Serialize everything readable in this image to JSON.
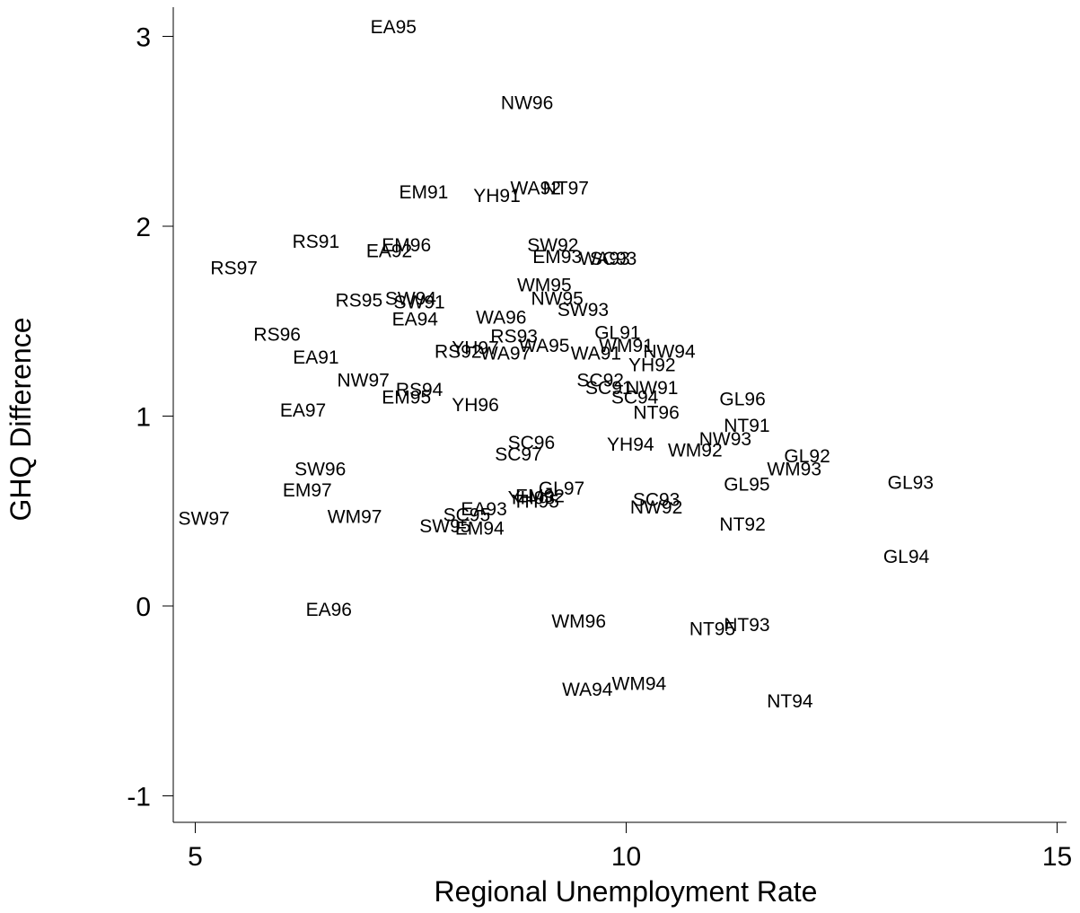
{
  "chart_data": {
    "type": "scatter",
    "title": "",
    "xlabel": "Regional Unemployment Rate",
    "ylabel": "GHQ Difference",
    "xlim": [
      4.75,
      15.05
    ],
    "ylim": [
      -1.2,
      3.2
    ],
    "xticks": [
      5,
      10,
      15
    ],
    "yticks": [
      -1,
      0,
      1,
      2,
      3
    ],
    "x_tick_labels": [
      "5",
      "10",
      "15"
    ],
    "y_tick_labels": [
      "-1",
      "0",
      "1",
      "2",
      "3"
    ],
    "grid": false,
    "marker": "label-only",
    "points": [
      {
        "label": "EA95",
        "x": 7.3,
        "y": 3.05
      },
      {
        "label": "NW96",
        "x": 8.85,
        "y": 2.65
      },
      {
        "label": "EM91",
        "x": 7.65,
        "y": 2.18
      },
      {
        "label": "YH91",
        "x": 8.5,
        "y": 2.16
      },
      {
        "label": "WA92",
        "x": 8.95,
        "y": 2.2
      },
      {
        "label": "NT97",
        "x": 9.3,
        "y": 2.2
      },
      {
        "label": "RS91",
        "x": 6.4,
        "y": 1.92
      },
      {
        "label": "EA92",
        "x": 7.25,
        "y": 1.87
      },
      {
        "label": "EM96",
        "x": 7.45,
        "y": 1.9
      },
      {
        "label": "RS97",
        "x": 5.45,
        "y": 1.78
      },
      {
        "label": "SW92",
        "x": 9.15,
        "y": 1.9
      },
      {
        "label": "EM93",
        "x": 9.2,
        "y": 1.84
      },
      {
        "label": "WA93",
        "x": 9.75,
        "y": 1.83
      },
      {
        "label": "SC93",
        "x": 9.85,
        "y": 1.83
      },
      {
        "label": "RS95",
        "x": 6.9,
        "y": 1.61
      },
      {
        "label": "SW94",
        "x": 7.5,
        "y": 1.62
      },
      {
        "label": "SW91",
        "x": 7.6,
        "y": 1.6
      },
      {
        "label": "WM95",
        "x": 9.05,
        "y": 1.69
      },
      {
        "label": "NW95",
        "x": 9.2,
        "y": 1.62
      },
      {
        "label": "SW93",
        "x": 9.5,
        "y": 1.56
      },
      {
        "label": "EA94",
        "x": 7.55,
        "y": 1.51
      },
      {
        "label": "WA96",
        "x": 8.55,
        "y": 1.52
      },
      {
        "label": "RS96",
        "x": 5.95,
        "y": 1.43
      },
      {
        "label": "RS93",
        "x": 8.7,
        "y": 1.42
      },
      {
        "label": "GL91",
        "x": 9.9,
        "y": 1.44
      },
      {
        "label": "WM91",
        "x": 10.0,
        "y": 1.37
      },
      {
        "label": "NW94",
        "x": 10.5,
        "y": 1.34
      },
      {
        "label": "RS92",
        "x": 8.05,
        "y": 1.34
      },
      {
        "label": "YH97",
        "x": 8.25,
        "y": 1.36
      },
      {
        "label": "WA97",
        "x": 8.6,
        "y": 1.33
      },
      {
        "label": "WA95",
        "x": 9.05,
        "y": 1.37
      },
      {
        "label": "WA91",
        "x": 9.65,
        "y": 1.33
      },
      {
        "label": "EA91",
        "x": 6.4,
        "y": 1.31
      },
      {
        "label": "YH92",
        "x": 10.3,
        "y": 1.27
      },
      {
        "label": "NW97",
        "x": 6.95,
        "y": 1.19
      },
      {
        "label": "SC92",
        "x": 9.7,
        "y": 1.19
      },
      {
        "label": "SC91",
        "x": 9.8,
        "y": 1.15
      },
      {
        "label": "NW91",
        "x": 10.3,
        "y": 1.15
      },
      {
        "label": "RS94",
        "x": 7.6,
        "y": 1.14
      },
      {
        "label": "EM95",
        "x": 7.45,
        "y": 1.1
      },
      {
        "label": "SC94",
        "x": 10.1,
        "y": 1.1
      },
      {
        "label": "GL96",
        "x": 11.35,
        "y": 1.09
      },
      {
        "label": "YH96",
        "x": 8.25,
        "y": 1.06
      },
      {
        "label": "EA97",
        "x": 6.25,
        "y": 1.03
      },
      {
        "label": "NT96",
        "x": 10.35,
        "y": 1.02
      },
      {
        "label": "NT91",
        "x": 11.4,
        "y": 0.95
      },
      {
        "label": "NW93",
        "x": 11.15,
        "y": 0.88
      },
      {
        "label": "SC96",
        "x": 8.9,
        "y": 0.86
      },
      {
        "label": "YH94",
        "x": 10.05,
        "y": 0.85
      },
      {
        "label": "WM92",
        "x": 10.8,
        "y": 0.82
      },
      {
        "label": "SC97",
        "x": 8.75,
        "y": 0.8
      },
      {
        "label": "GL92",
        "x": 12.1,
        "y": 0.79
      },
      {
        "label": "WM93",
        "x": 11.95,
        "y": 0.72
      },
      {
        "label": "SW96",
        "x": 6.45,
        "y": 0.72
      },
      {
        "label": "GL97",
        "x": 9.25,
        "y": 0.62
      },
      {
        "label": "GL95",
        "x": 11.4,
        "y": 0.64
      },
      {
        "label": "GL93",
        "x": 13.3,
        "y": 0.65
      },
      {
        "label": "EM97",
        "x": 6.3,
        "y": 0.61
      },
      {
        "label": "EM92",
        "x": 9.0,
        "y": 0.58
      },
      {
        "label": "YH93",
        "x": 8.9,
        "y": 0.57
      },
      {
        "label": "YH95",
        "x": 8.95,
        "y": 0.55
      },
      {
        "label": "SC93",
        "x": 10.35,
        "y": 0.56
      },
      {
        "label": "NW92",
        "x": 10.35,
        "y": 0.52
      },
      {
        "label": "EA93",
        "x": 8.35,
        "y": 0.51
      },
      {
        "label": "SC95",
        "x": 8.15,
        "y": 0.48
      },
      {
        "label": "SW97",
        "x": 5.1,
        "y": 0.46
      },
      {
        "label": "WM97",
        "x": 6.85,
        "y": 0.47
      },
      {
        "label": "NT92",
        "x": 11.35,
        "y": 0.43
      },
      {
        "label": "SW95",
        "x": 7.9,
        "y": 0.42
      },
      {
        "label": "EM94",
        "x": 8.3,
        "y": 0.41
      },
      {
        "label": "GL94",
        "x": 13.25,
        "y": 0.26
      },
      {
        "label": "EA96",
        "x": 6.55,
        "y": -0.02
      },
      {
        "label": "WM96",
        "x": 9.45,
        "y": -0.08
      },
      {
        "label": "NT95",
        "x": 11.0,
        "y": -0.12
      },
      {
        "label": "NT93",
        "x": 11.4,
        "y": -0.1
      },
      {
        "label": "WM94",
        "x": 10.15,
        "y": -0.41
      },
      {
        "label": "WA94",
        "x": 9.55,
        "y": -0.44
      },
      {
        "label": "NT94",
        "x": 11.9,
        "y": -0.5
      }
    ]
  }
}
